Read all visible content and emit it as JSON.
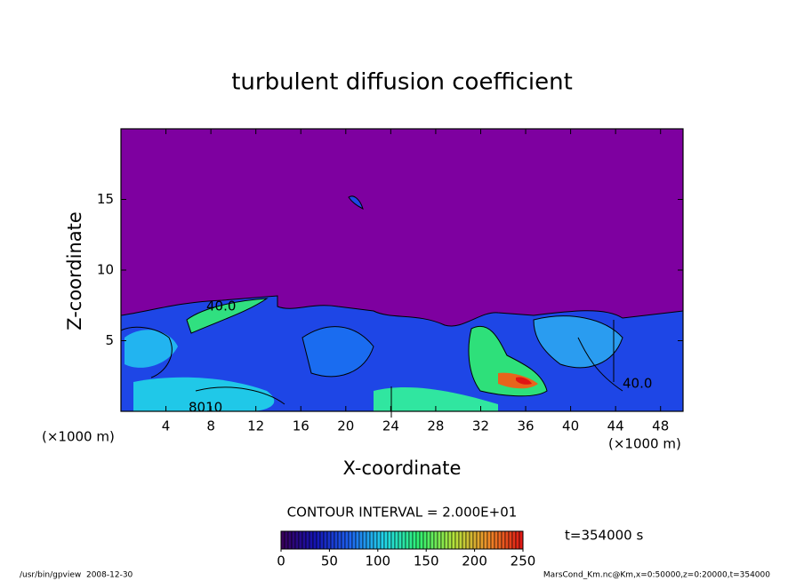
{
  "chart_data": {
    "type": "contour",
    "title": "turbulent diffusion coefficient",
    "x_label": "X-coordinate",
    "y_label": "Z-coordinate",
    "x_unit": "(×1000 m)",
    "y_unit": "(×1000 m)",
    "xlim": [
      0,
      50
    ],
    "xticks": [
      4,
      8,
      12,
      16,
      20,
      24,
      28,
      32,
      36,
      40,
      44,
      48
    ],
    "ylim": [
      0,
      20
    ],
    "yticks": [
      5,
      10,
      15
    ],
    "contour_interval": "CONTOUR INTERVAL = 2.000E+01",
    "contour_labels": [
      "40.0",
      "8010",
      "40.0"
    ],
    "colorbar": {
      "lim": [
        0,
        250
      ],
      "ticks": [
        0,
        50,
        100,
        150,
        200,
        250
      ],
      "colors": [
        "#3a0058",
        "#1414b4",
        "#1e64f0",
        "#22d8e8",
        "#30f070",
        "#b4e43c",
        "#f08c28",
        "#e01414"
      ]
    },
    "time": "t=354000 s"
  },
  "footer": {
    "left": "/usr/bin/gpview  2008-12-30",
    "right": "MarsCond_Km.nc@Km,x=0:50000,z=0:20000,t=354000"
  }
}
